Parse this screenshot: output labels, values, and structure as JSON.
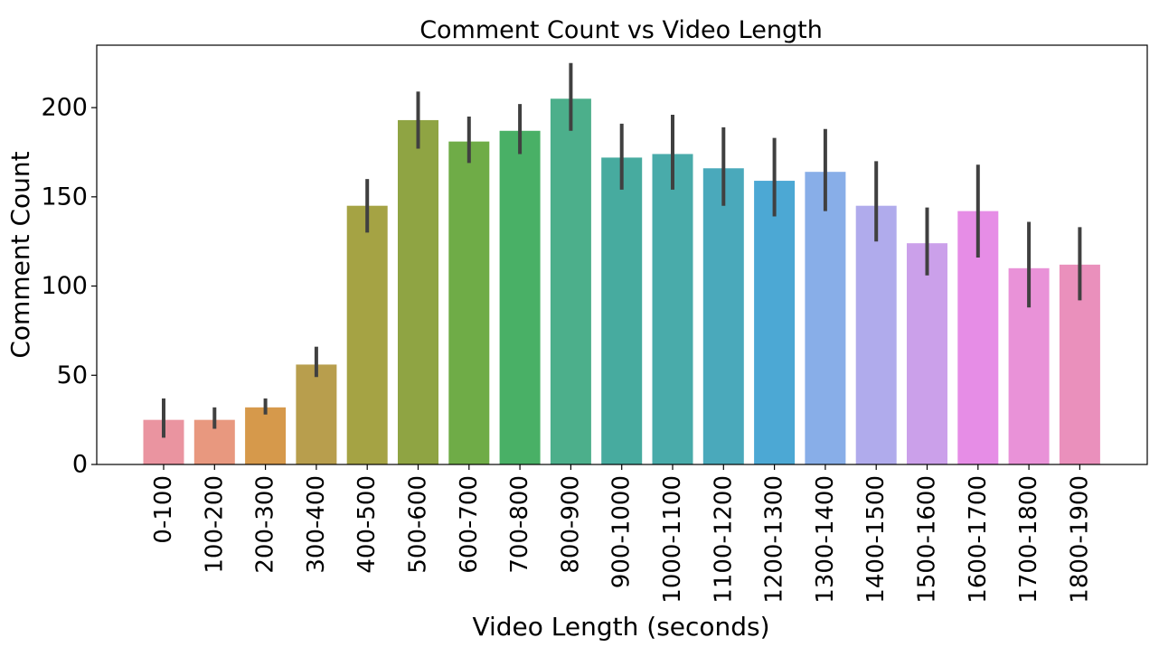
{
  "chart_data": {
    "type": "bar",
    "title": "Comment Count vs Video Length",
    "xlabel": "Video Length (seconds)",
    "ylabel": "Comment Count",
    "ylim": [
      0,
      235
    ],
    "yticks": [
      0,
      50,
      100,
      150,
      200
    ],
    "grid": false,
    "legend": "none",
    "categories": [
      "0-100",
      "100-200",
      "200-300",
      "300-400",
      "400-500",
      "500-600",
      "600-700",
      "700-800",
      "800-900",
      "900-1000",
      "1000-1100",
      "1100-1200",
      "1200-1300",
      "1300-1400",
      "1400-1500",
      "1500-1600",
      "1600-1700",
      "1700-1800",
      "1800-1900"
    ],
    "values": [
      25,
      25,
      32,
      56,
      145,
      193,
      181,
      187,
      205,
      172,
      174,
      166,
      159,
      164,
      145,
      124,
      142,
      110,
      112
    ],
    "error_low": [
      15,
      20,
      28,
      49,
      130,
      177,
      169,
      174,
      187,
      154,
      154,
      145,
      139,
      142,
      125,
      106,
      116,
      88,
      92
    ],
    "error_high": [
      37,
      32,
      37,
      66,
      160,
      209,
      195,
      202,
      225,
      191,
      196,
      189,
      183,
      188,
      170,
      144,
      168,
      136,
      133
    ],
    "colors": [
      "#ea94a0",
      "#e8987f",
      "#d6994b",
      "#b89e4d",
      "#a5a344",
      "#8fa443",
      "#6fac47",
      "#49b066",
      "#4caf8b",
      "#47ab9f",
      "#49abaa",
      "#4aa9bb",
      "#4ca8d4",
      "#88aee8",
      "#b0abec",
      "#cba0ea",
      "#e68de6",
      "#e992d8",
      "#ea90bc"
    ],
    "error_color": "#404040"
  }
}
